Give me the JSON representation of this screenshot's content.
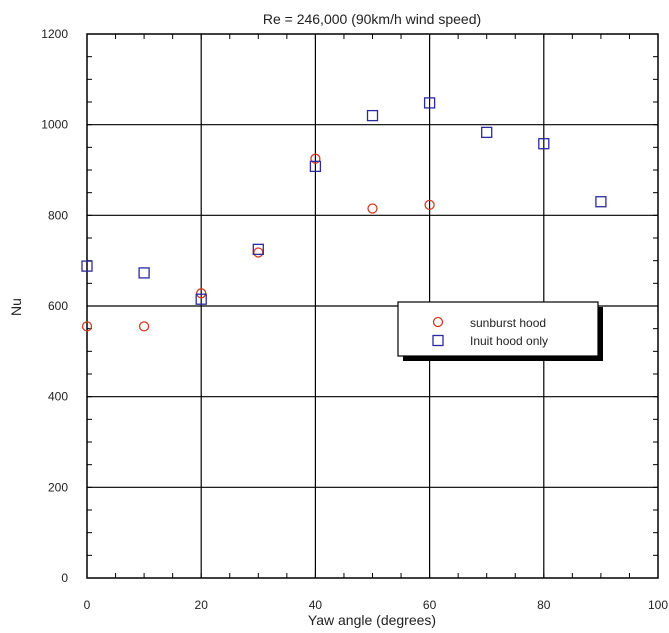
{
  "chart_data": {
    "type": "scatter",
    "title": "Re = 246,000 (90km/h wind speed)",
    "xlabel": "Yaw angle (degrees)",
    "ylabel": "Nu",
    "xlim": [
      0,
      100
    ],
    "ylim": [
      0,
      1200
    ],
    "xticks": [
      "0",
      "20",
      "40",
      "60",
      "80",
      "100"
    ],
    "yticks": [
      "0",
      "200",
      "400",
      "600",
      "800",
      "1000",
      "1200"
    ],
    "grid": true,
    "legend_position": "center-right",
    "series": [
      {
        "name": "sunburst hood",
        "marker": "circle",
        "color": "#d23a1e",
        "x": [
          0,
          10,
          20,
          30,
          40,
          50,
          60
        ],
        "y": [
          555,
          555,
          628,
          718,
          925,
          815,
          823
        ]
      },
      {
        "name": "Inuit hood only",
        "marker": "square",
        "color": "#2b2ba0",
        "x": [
          0,
          10,
          20,
          30,
          40,
          50,
          60,
          70,
          80,
          90
        ],
        "y": [
          688,
          673,
          615,
          725,
          908,
          1020,
          1048,
          983,
          958,
          830
        ]
      }
    ]
  }
}
